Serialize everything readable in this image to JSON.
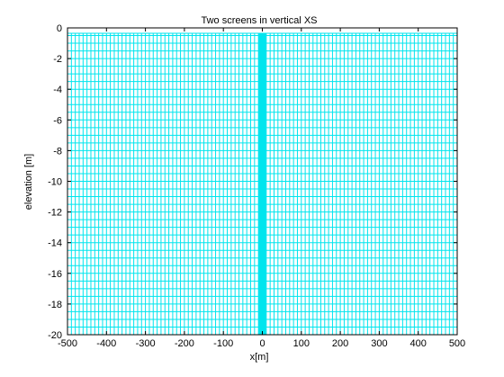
{
  "figure": {
    "title": "Two screens in vertical XS",
    "xlabel": "x[m]",
    "ylabel": "elevation [m]"
  },
  "chart_data": {
    "type": "grid-mesh",
    "title": "Two screens in vertical XS",
    "xlabel": "x[m]",
    "ylabel": "elevation [m]",
    "xlim": [
      -500,
      500
    ],
    "ylim": [
      -20,
      0
    ],
    "x_ticks": [
      -500,
      -400,
      -300,
      -200,
      -100,
      0,
      100,
      200,
      300,
      400,
      500
    ],
    "y_ticks": [
      0,
      -2,
      -4,
      -6,
      -8,
      -10,
      -12,
      -14,
      -16,
      -18,
      -20
    ],
    "grid_color": "#00e5ee",
    "mesh": {
      "x_outer_spacing": 10,
      "x_refined_region": [
        -10,
        10
      ],
      "x_refined_spacing": 1,
      "y_layer_thickness": 0.5
    },
    "grid": false
  }
}
